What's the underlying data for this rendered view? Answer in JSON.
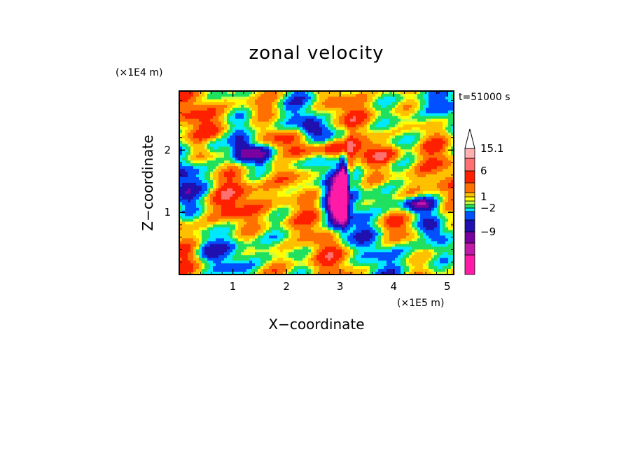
{
  "chart_data": {
    "type": "heatmap",
    "title": "zonal velocity",
    "time_label": "t=51000 s",
    "xlabel": "X−coordinate",
    "ylabel": "Z−coordinate",
    "x_scale_label": "(×1E5 m)",
    "y_scale_label": "(×1E4 m)",
    "x_ticks": [
      "1",
      "2",
      "3",
      "4",
      "5"
    ],
    "y_ticks": [
      "1",
      "2"
    ],
    "xlim": [
      0,
      5.12
    ],
    "ylim": [
      0,
      2.95
    ],
    "colorbar": {
      "labels": [
        "15.1",
        "6",
        "1",
        "−2",
        "−9"
      ],
      "bins": [
        {
          "color": "#ff1aa8"
        },
        {
          "color": "#c21aa8"
        },
        {
          "color": "#7a00a0"
        },
        {
          "color": "#2010b0"
        },
        {
          "color": "#0050ff"
        },
        {
          "color": "#00e8ff"
        },
        {
          "color": "#20e060"
        },
        {
          "color": "#c8ff40"
        },
        {
          "color": "#ffff00"
        },
        {
          "color": "#ffc000"
        },
        {
          "color": "#ff7000"
        },
        {
          "color": "#ff2000"
        },
        {
          "color": "#ff7070"
        },
        {
          "color": "#ffb0b0"
        }
      ],
      "bin_values": [
        -13,
        -10.5,
        -9,
        -6,
        -3,
        -2,
        0,
        0.5,
        1,
        2,
        4,
        6,
        10,
        15.1
      ],
      "extend": "max"
    }
  }
}
